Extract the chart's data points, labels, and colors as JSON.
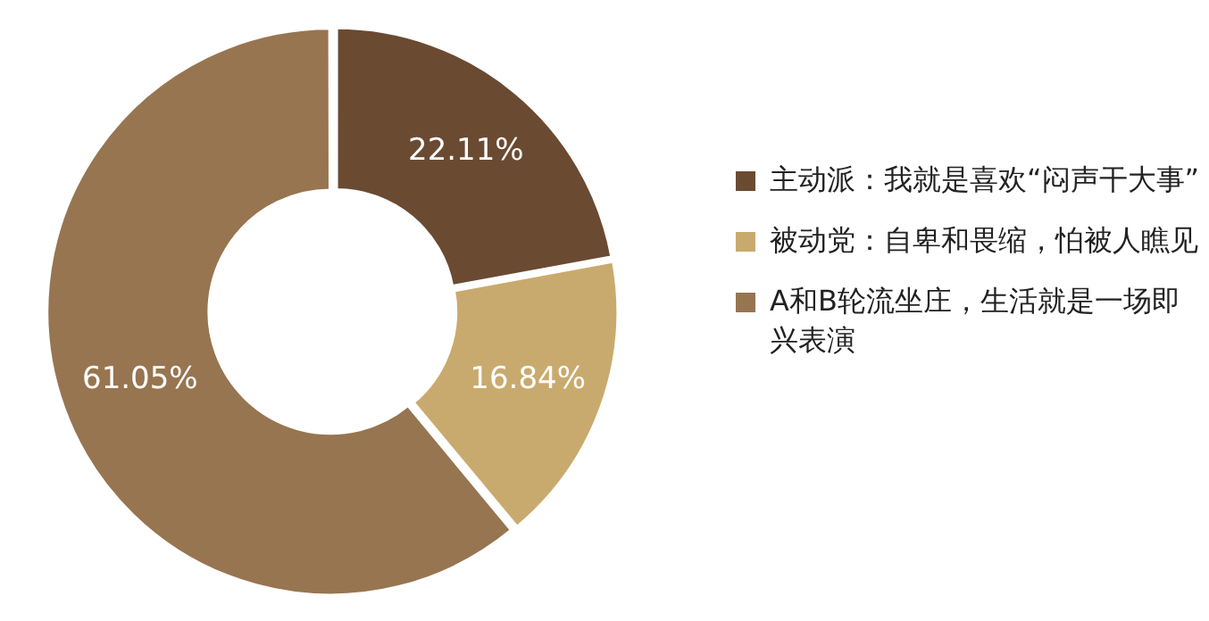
{
  "chart_data": {
    "type": "donut",
    "categories": [
      "主动派：我就是喜欢“闷声干大事”",
      "被动党：自卑和畏缩，怕被人瞧见",
      "A和B轮流坐庄，生活就是一场即兴表演"
    ],
    "values": [
      22.11,
      16.84,
      61.05
    ],
    "value_labels": [
      "22.11%",
      "16.84%",
      "61.05%"
    ],
    "colors": [
      "#6b4a32",
      "#c9aa6e",
      "#977550"
    ],
    "legend": "right"
  }
}
